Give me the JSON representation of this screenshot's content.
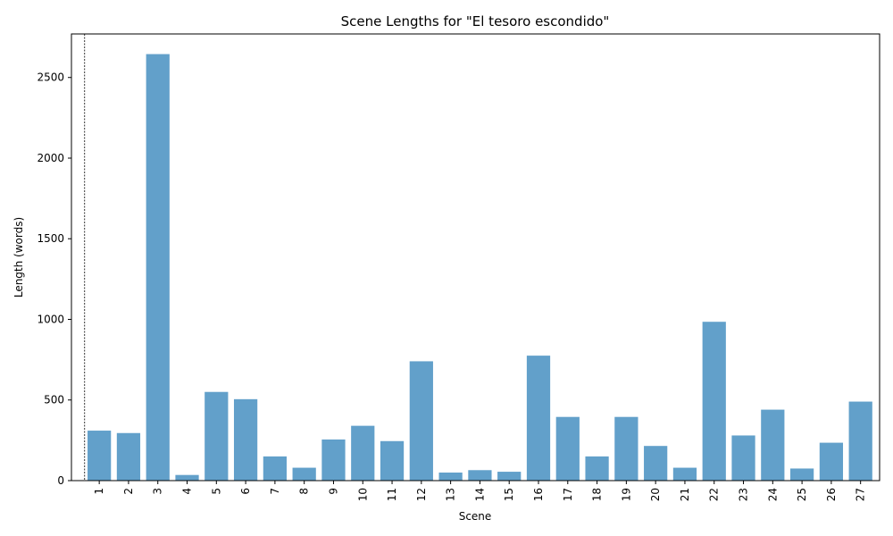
{
  "chart_data": {
    "type": "bar",
    "title": "Scene Lengths for \"El tesoro escondido\"",
    "xlabel": "Scene",
    "ylabel": "Length (words)",
    "categories": [
      "1",
      "2",
      "3",
      "4",
      "5",
      "6",
      "7",
      "8",
      "9",
      "10",
      "11",
      "12",
      "13",
      "14",
      "15",
      "16",
      "17",
      "18",
      "19",
      "20",
      "21",
      "22",
      "23",
      "24",
      "25",
      "26",
      "27"
    ],
    "values": [
      310,
      295,
      2645,
      35,
      550,
      505,
      150,
      80,
      255,
      340,
      245,
      740,
      50,
      65,
      55,
      775,
      395,
      150,
      395,
      215,
      80,
      985,
      280,
      440,
      75,
      235,
      490
    ],
    "ylim": [
      0,
      2770
    ],
    "yticks": [
      0,
      500,
      1000,
      1500,
      2000,
      2500
    ],
    "grid": false,
    "bar_color": "#1f77b4",
    "reference_line": {
      "x": 0.5,
      "style": "dashed",
      "color": "#000000"
    }
  }
}
